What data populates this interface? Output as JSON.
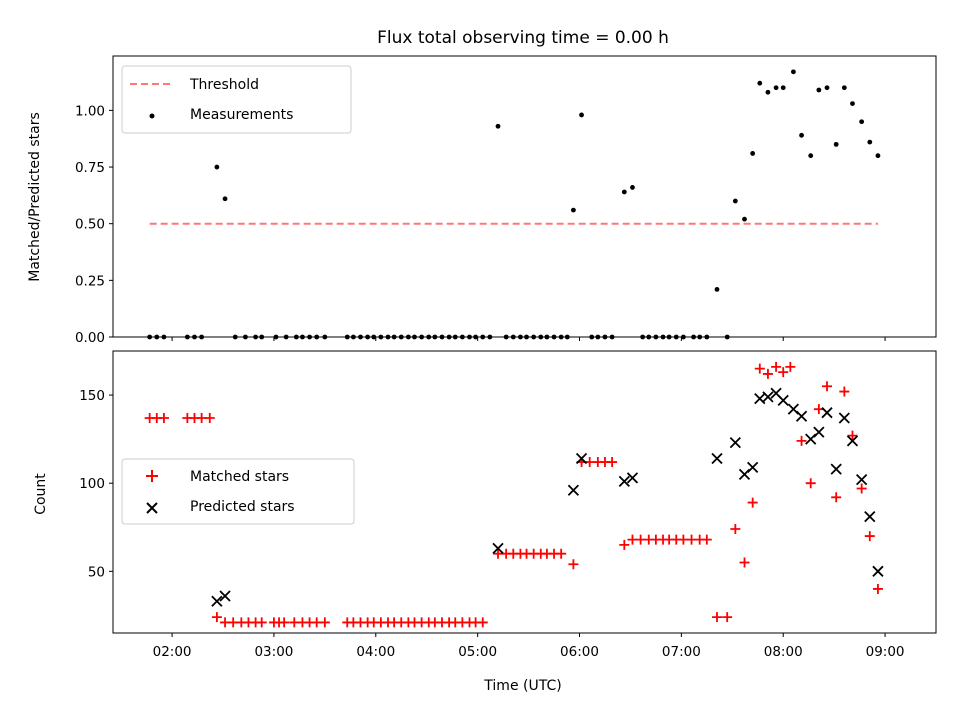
{
  "chart_data": [
    {
      "type": "scatter",
      "title": "Flux total observing time = 0.00 h",
      "ylabel": "Matched/Predicted stars",
      "xlabel": "",
      "x_unit": "hours (UTC)",
      "xlim": [
        1.42,
        9.5
      ],
      "ylim": [
        0,
        1.24
      ],
      "yticks": [
        0.0,
        0.25,
        0.5,
        0.75,
        1.0
      ],
      "ytick_labels": [
        "0.00",
        "0.25",
        "0.50",
        "0.75",
        "1.00"
      ],
      "threshold": {
        "name": "Threshold",
        "value": 0.5,
        "x_range": [
          1.78,
          8.93
        ],
        "color": "#ff7777",
        "style": "dashed"
      },
      "legend": {
        "placement": "upper left",
        "entries": [
          "Threshold",
          "Measurements"
        ]
      },
      "series": [
        {
          "name": "Measurements",
          "color": "#000000",
          "marker": "dot",
          "points": [
            [
              1.78,
              0
            ],
            [
              1.85,
              0
            ],
            [
              1.92,
              0
            ],
            [
              2.15,
              0
            ],
            [
              2.22,
              0
            ],
            [
              2.29,
              0
            ],
            [
              2.44,
              0.75
            ],
            [
              2.52,
              0.61
            ],
            [
              2.62,
              0
            ],
            [
              2.72,
              0
            ],
            [
              2.82,
              0
            ],
            [
              2.88,
              0
            ],
            [
              3.02,
              0
            ],
            [
              3.12,
              0
            ],
            [
              3.22,
              0
            ],
            [
              3.28,
              0
            ],
            [
              3.35,
              0
            ],
            [
              3.42,
              0
            ],
            [
              3.5,
              0
            ],
            [
              3.72,
              0
            ],
            [
              3.78,
              0
            ],
            [
              3.85,
              0
            ],
            [
              3.92,
              0
            ],
            [
              3.98,
              0
            ],
            [
              4.05,
              0
            ],
            [
              4.12,
              0
            ],
            [
              4.18,
              0
            ],
            [
              4.25,
              0
            ],
            [
              4.32,
              0
            ],
            [
              4.38,
              0
            ],
            [
              4.45,
              0
            ],
            [
              4.52,
              0
            ],
            [
              4.58,
              0
            ],
            [
              4.65,
              0
            ],
            [
              4.72,
              0
            ],
            [
              4.78,
              0
            ],
            [
              4.85,
              0
            ],
            [
              4.92,
              0
            ],
            [
              4.98,
              0
            ],
            [
              5.05,
              0
            ],
            [
              5.12,
              0
            ],
            [
              5.2,
              0.93
            ],
            [
              5.28,
              0
            ],
            [
              5.35,
              0
            ],
            [
              5.42,
              0
            ],
            [
              5.48,
              0
            ],
            [
              5.55,
              0
            ],
            [
              5.62,
              0
            ],
            [
              5.68,
              0
            ],
            [
              5.75,
              0
            ],
            [
              5.82,
              0
            ],
            [
              5.88,
              0
            ],
            [
              5.94,
              0.56
            ],
            [
              6.02,
              0.98
            ],
            [
              6.12,
              0
            ],
            [
              6.18,
              0
            ],
            [
              6.25,
              0
            ],
            [
              6.32,
              0
            ],
            [
              6.44,
              0.64
            ],
            [
              6.52,
              0.66
            ],
            [
              6.62,
              0
            ],
            [
              6.68,
              0
            ],
            [
              6.75,
              0
            ],
            [
              6.82,
              0
            ],
            [
              6.88,
              0
            ],
            [
              6.95,
              0
            ],
            [
              7.02,
              0
            ],
            [
              7.12,
              0
            ],
            [
              7.18,
              0
            ],
            [
              7.25,
              0
            ],
            [
              7.35,
              0.21
            ],
            [
              7.45,
              0
            ],
            [
              7.53,
              0.6
            ],
            [
              7.62,
              0.52
            ],
            [
              7.7,
              0.81
            ],
            [
              7.77,
              1.12
            ],
            [
              7.85,
              1.08
            ],
            [
              7.93,
              1.1
            ],
            [
              8.0,
              1.1
            ],
            [
              8.1,
              1.17
            ],
            [
              8.18,
              0.89
            ],
            [
              8.27,
              0.8
            ],
            [
              8.35,
              1.09
            ],
            [
              8.43,
              1.1
            ],
            [
              8.52,
              0.85
            ],
            [
              8.6,
              1.1
            ],
            [
              8.68,
              1.03
            ],
            [
              8.77,
              0.95
            ],
            [
              8.85,
              0.86
            ],
            [
              8.93,
              0.8
            ]
          ]
        }
      ]
    },
    {
      "type": "scatter",
      "title": "",
      "ylabel": "Count",
      "xlabel": "Time (UTC)",
      "x_unit": "hours (UTC)",
      "xlim": [
        1.42,
        9.5
      ],
      "ylim": [
        15,
        175
      ],
      "xticks": [
        2,
        3,
        4,
        5,
        6,
        7,
        8,
        9
      ],
      "xtick_labels": [
        "02:00",
        "03:00",
        "04:00",
        "05:00",
        "06:00",
        "07:00",
        "08:00",
        "09:00"
      ],
      "yticks": [
        50,
        100,
        150
      ],
      "ytick_labels": [
        "50",
        "100",
        "150"
      ],
      "legend": {
        "placement": "center left",
        "entries": [
          "Matched stars",
          "Predicted stars"
        ]
      },
      "series": [
        {
          "name": "Matched stars",
          "color": "#ff0000",
          "marker": "plus",
          "points": [
            [
              1.78,
              137
            ],
            [
              1.85,
              137
            ],
            [
              1.92,
              137
            ],
            [
              2.15,
              137
            ],
            [
              2.22,
              137
            ],
            [
              2.29,
              137
            ],
            [
              2.37,
              137
            ],
            [
              2.44,
              24
            ],
            [
              2.52,
              21
            ],
            [
              2.6,
              21
            ],
            [
              2.68,
              21
            ],
            [
              2.75,
              21
            ],
            [
              2.82,
              21
            ],
            [
              2.88,
              21
            ],
            [
              3.0,
              21
            ],
            [
              3.05,
              21
            ],
            [
              3.1,
              21
            ],
            [
              3.2,
              21
            ],
            [
              3.28,
              21
            ],
            [
              3.35,
              21
            ],
            [
              3.42,
              21
            ],
            [
              3.5,
              21
            ],
            [
              3.72,
              21
            ],
            [
              3.78,
              21
            ],
            [
              3.85,
              21
            ],
            [
              3.92,
              21
            ],
            [
              3.98,
              21
            ],
            [
              4.05,
              21
            ],
            [
              4.12,
              21
            ],
            [
              4.18,
              21
            ],
            [
              4.25,
              21
            ],
            [
              4.32,
              21
            ],
            [
              4.38,
              21
            ],
            [
              4.45,
              21
            ],
            [
              4.52,
              21
            ],
            [
              4.58,
              21
            ],
            [
              4.65,
              21
            ],
            [
              4.72,
              21
            ],
            [
              4.78,
              21
            ],
            [
              4.85,
              21
            ],
            [
              4.92,
              21
            ],
            [
              4.98,
              21
            ],
            [
              5.05,
              21
            ],
            [
              5.2,
              60
            ],
            [
              5.28,
              60
            ],
            [
              5.35,
              60
            ],
            [
              5.42,
              60
            ],
            [
              5.48,
              60
            ],
            [
              5.55,
              60
            ],
            [
              5.62,
              60
            ],
            [
              5.68,
              60
            ],
            [
              5.75,
              60
            ],
            [
              5.82,
              60
            ],
            [
              5.94,
              54
            ],
            [
              6.02,
              112
            ],
            [
              6.1,
              112
            ],
            [
              6.18,
              112
            ],
            [
              6.25,
              112
            ],
            [
              6.32,
              112
            ],
            [
              6.44,
              65
            ],
            [
              6.52,
              68
            ],
            [
              6.6,
              68
            ],
            [
              6.68,
              68
            ],
            [
              6.75,
              68
            ],
            [
              6.82,
              68
            ],
            [
              6.88,
              68
            ],
            [
              6.95,
              68
            ],
            [
              7.02,
              68
            ],
            [
              7.1,
              68
            ],
            [
              7.18,
              68
            ],
            [
              7.25,
              68
            ],
            [
              7.35,
              24
            ],
            [
              7.45,
              24
            ],
            [
              7.53,
              74
            ],
            [
              7.62,
              55
            ],
            [
              7.7,
              89
            ],
            [
              7.77,
              165
            ],
            [
              7.85,
              162
            ],
            [
              7.93,
              166
            ],
            [
              8.0,
              163
            ],
            [
              8.07,
              166
            ],
            [
              8.18,
              124
            ],
            [
              8.27,
              100
            ],
            [
              8.35,
              142
            ],
            [
              8.43,
              155
            ],
            [
              8.52,
              92
            ],
            [
              8.6,
              152
            ],
            [
              8.68,
              127
            ],
            [
              8.77,
              97
            ],
            [
              8.85,
              70
            ],
            [
              8.93,
              40
            ]
          ]
        },
        {
          "name": "Predicted stars",
          "color": "#000000",
          "marker": "x",
          "points": [
            [
              2.44,
              33
            ],
            [
              2.52,
              36
            ],
            [
              5.2,
              63
            ],
            [
              5.94,
              96
            ],
            [
              6.02,
              114
            ],
            [
              6.44,
              101
            ],
            [
              6.52,
              103
            ],
            [
              7.35,
              114
            ],
            [
              7.53,
              123
            ],
            [
              7.62,
              105
            ],
            [
              7.7,
              109
            ],
            [
              7.77,
              148
            ],
            [
              7.85,
              149
            ],
            [
              7.93,
              151
            ],
            [
              8.0,
              147
            ],
            [
              8.1,
              142
            ],
            [
              8.18,
              138
            ],
            [
              8.27,
              125
            ],
            [
              8.35,
              129
            ],
            [
              8.43,
              140
            ],
            [
              8.52,
              108
            ],
            [
              8.6,
              137
            ],
            [
              8.68,
              124
            ],
            [
              8.77,
              102
            ],
            [
              8.85,
              81
            ],
            [
              8.93,
              50
            ]
          ]
        }
      ]
    }
  ]
}
